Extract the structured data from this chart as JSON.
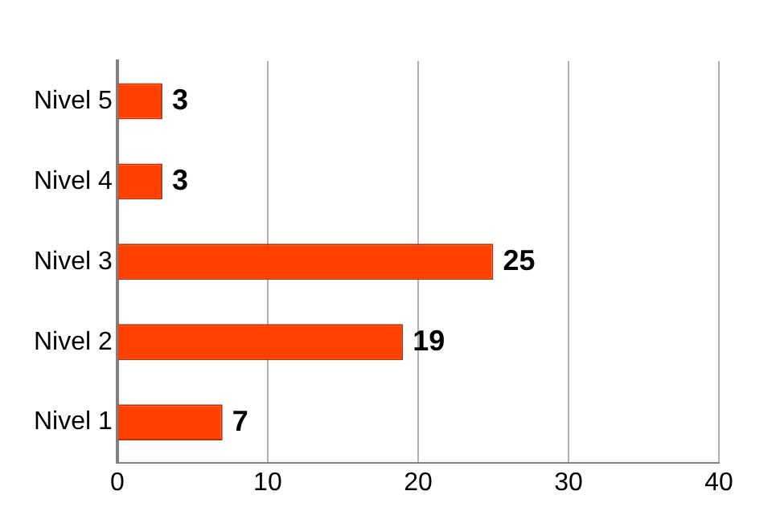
{
  "chart_data": {
    "type": "bar",
    "orientation": "horizontal",
    "categories": [
      "Nivel 5",
      "Nivel 4",
      "Nivel 3",
      "Nivel 2",
      "Nivel 1"
    ],
    "values": [
      3,
      3,
      25,
      19,
      7
    ],
    "color": "#ff4000",
    "xlim": [
      0,
      40
    ],
    "xticks": [
      0,
      10,
      20,
      30,
      40
    ],
    "grid": "x",
    "data_labels": true,
    "legend": false
  }
}
